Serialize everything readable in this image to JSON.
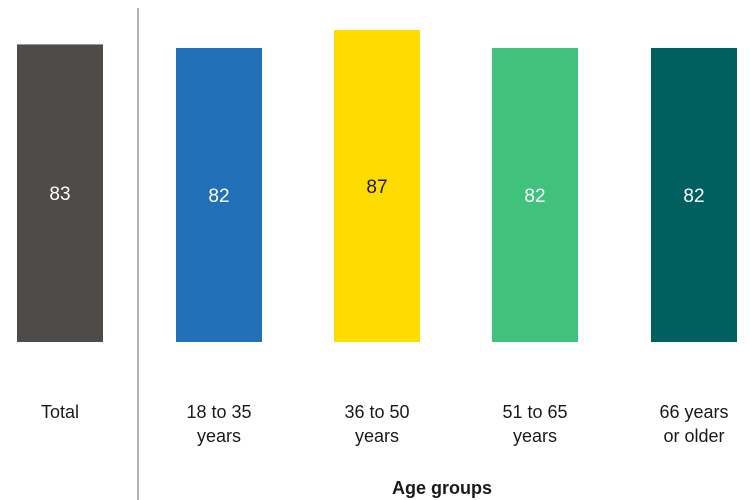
{
  "chart_data": {
    "type": "bar",
    "categories": [
      [
        "Total"
      ],
      [
        "18 to 35",
        "years"
      ],
      [
        "36 to 50",
        "years"
      ],
      [
        "51 to 65",
        "years"
      ],
      [
        "66 years",
        "or older"
      ]
    ],
    "values": [
      83,
      82,
      87,
      82,
      82
    ],
    "data_labels": [
      "83",
      "82",
      "87",
      "82",
      "82"
    ],
    "colors": [
      "#4f4b48",
      "#2170b8",
      "#ffdc00",
      "#40c27c",
      "#005f5f"
    ],
    "label_colors": [
      "#ffffff",
      "#ffffff",
      "#1a1a1a",
      "#ffffff",
      "#ffffff"
    ],
    "xlabel": "Age groups",
    "ylabel": "",
    "title": "",
    "ylim": [
      0,
      90
    ],
    "grid": false,
    "legend": "none",
    "separator_after_index": 0
  }
}
